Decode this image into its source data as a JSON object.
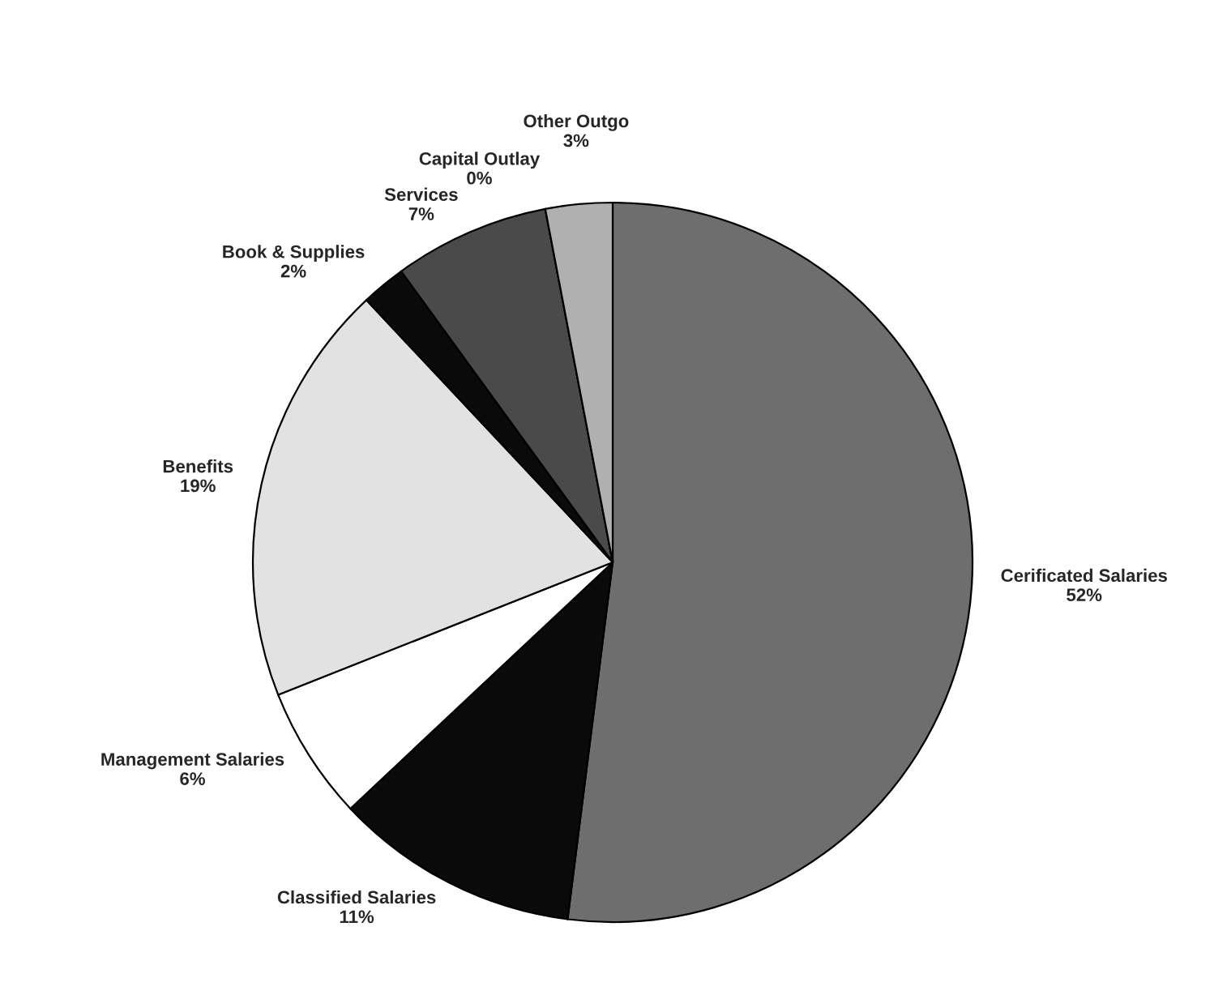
{
  "chart_data": {
    "type": "pie",
    "categories": [
      "Cerificated Salaries",
      "Classified Salaries",
      "Management Salaries",
      "Benefits",
      "Book & Supplies",
      "Services",
      "Capital Outlay",
      "Other Outgo"
    ],
    "values": [
      52,
      11,
      6,
      19,
      2,
      7,
      0,
      3
    ],
    "value_labels": [
      "52%",
      "11%",
      "6%",
      "19%",
      "2%",
      "7%",
      "0%",
      "3%"
    ],
    "colors": [
      "#6e6e6e",
      "#0a0a0a",
      "#ffffff",
      "#e2e2e2",
      "#0a0a0a",
      "#4a4a4a",
      "#808080",
      "#b0b0b0"
    ]
  }
}
